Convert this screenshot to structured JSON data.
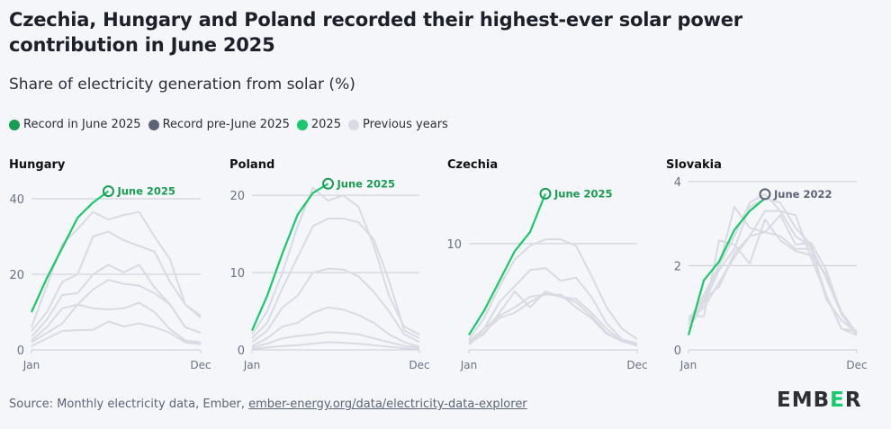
{
  "title": "Czechia, Hungary and Poland recorded their highest-ever solar power contribution in June 2025",
  "subtitle": "Share of electricity generation from solar (%)",
  "legend": [
    {
      "label": "Record in June 2025",
      "color": "#1a9d52"
    },
    {
      "label": "Record pre-June 2025",
      "color": "#5c6479"
    },
    {
      "label": "2025",
      "color": "#19c96b"
    },
    {
      "label": "Previous years",
      "color": "#d9dae3"
    }
  ],
  "source": {
    "text": "Source: Monthly electricity data, Ember, ",
    "link": "ember-energy.org/data/electricity-data-explorer"
  },
  "logo": {
    "pre": "EMB",
    "e": "E",
    "post": "R"
  },
  "colors": {
    "current": "#19c96b",
    "record_new": "#1a9d52",
    "record_old": "#5c6479",
    "previous": "#d9dae3",
    "grid": "#c9cbd6"
  },
  "chart_data": [
    {
      "type": "line",
      "title": "Hungary",
      "ylim": [
        0,
        45
      ],
      "yticks": [
        0,
        20,
        40
      ],
      "xticks": [
        "Jan",
        "Dec"
      ],
      "record": {
        "label": "June 2025",
        "kind": "new",
        "month": 6,
        "value": 42
      },
      "series_2025": [
        10,
        19,
        27,
        35,
        39,
        42
      ],
      "previous_years": [
        [
          6,
          17,
          28,
          32,
          36.5,
          34.5,
          35.7,
          36.5,
          30,
          24,
          12,
          9
        ],
        [
          5,
          10,
          18,
          20,
          30,
          31.3,
          29,
          27.5,
          26,
          18,
          12,
          8.5
        ],
        [
          3.5,
          8,
          14.5,
          15,
          20,
          22.5,
          20.5,
          22.5,
          16.5,
          12,
          6,
          4.5
        ],
        [
          2.5,
          6,
          11,
          12,
          16,
          18.5,
          17.5,
          17,
          15,
          12,
          6,
          4.5
        ],
        [
          2,
          4.5,
          7,
          12,
          11,
          10.7,
          11,
          12.5,
          10,
          5.5,
          2.5,
          2
        ],
        [
          1,
          3,
          5,
          5.2,
          5.3,
          7.5,
          6.2,
          7,
          6,
          4.5,
          2,
          1.5
        ]
      ]
    },
    {
      "type": "line",
      "title": "Poland",
      "ylim": [
        0,
        22
      ],
      "yticks": [
        0,
        10,
        20
      ],
      "xticks": [
        "Jan",
        "Dec"
      ],
      "record": {
        "label": "June 2025",
        "kind": "new",
        "month": 6,
        "value": 21.5
      },
      "series_2025": [
        2.5,
        7,
        12.5,
        17.5,
        20.3,
        21.5
      ],
      "previous_years": [
        [
          2,
          5,
          10,
          16,
          21,
          19.3,
          20,
          18.5,
          13.5,
          7,
          3,
          2
        ],
        [
          1.5,
          3.5,
          8,
          12,
          16,
          17,
          17,
          16.5,
          14.3,
          9,
          2.5,
          1.5
        ],
        [
          1,
          2.5,
          5.5,
          7,
          10,
          10.5,
          10.4,
          9.5,
          7.5,
          5,
          2,
          1
        ],
        [
          0.5,
          1.5,
          3,
          3.5,
          4.8,
          5.5,
          5.2,
          4.5,
          3.5,
          2,
          1,
          0.4
        ],
        [
          0.3,
          0.8,
          1.5,
          1.8,
          2,
          2.3,
          2.2,
          2,
          1.5,
          1,
          0.5,
          0.3
        ],
        [
          0.1,
          0.3,
          0.5,
          0.6,
          0.8,
          1,
          0.9,
          0.8,
          0.6,
          0.4,
          0.2,
          0.1
        ]
      ]
    },
    {
      "type": "line",
      "title": "Czechia",
      "ylim": [
        0,
        16
      ],
      "yticks": [
        10
      ],
      "xticks": [
        "Jan",
        "Dec"
      ],
      "record": {
        "label": "June 2025",
        "kind": "new",
        "month": 6,
        "value": 14.7
      },
      "series_2025": [
        1.4,
        3.7,
        6.5,
        9.3,
        11.1,
        14.7
      ],
      "previous_years": [
        [
          1,
          3,
          6,
          8.5,
          9.8,
          10.4,
          10.4,
          9.8,
          7,
          4,
          2,
          1
        ],
        [
          0.8,
          2,
          4.5,
          6,
          7.5,
          7.7,
          6.5,
          6.8,
          5,
          2.5,
          1,
          0.6
        ],
        [
          0.6,
          1.5,
          3.5,
          5.5,
          4,
          5.5,
          5,
          4.8,
          3.5,
          2,
          0.8,
          0.5
        ],
        [
          0.7,
          2,
          3.2,
          4,
          5,
          5.2,
          5.2,
          4,
          3,
          1.5,
          0.8,
          0.4
        ],
        [
          0.5,
          1.7,
          3,
          3.5,
          4.5,
          5.3,
          5,
          4.5,
          3.2,
          1.6,
          0.8,
          0.5
        ]
      ]
    },
    {
      "type": "line",
      "title": "Slovakia",
      "ylim": [
        0,
        4.04
      ],
      "yticks": [
        0,
        2,
        4
      ],
      "xticks": [
        "Jan",
        "Dec"
      ],
      "record": {
        "label": "June 2022",
        "kind": "old",
        "month": 6,
        "value": 3.7
      },
      "series_2025": [
        0.35,
        1.65,
        2.1,
        2.85,
        3.3,
        3.6
      ],
      "previous_years": [
        [
          0.7,
          1.3,
          2,
          3.4,
          2.9,
          2.8,
          2.7,
          2.4,
          2.4,
          1.3,
          0.5,
          0.45
        ],
        [
          0.8,
          0.8,
          2.6,
          2.5,
          2.05,
          3.1,
          2.6,
          2.35,
          2.25,
          1.8,
          0.9,
          0.4
        ],
        [
          0.6,
          1.2,
          1.5,
          2.3,
          2.7,
          3.3,
          3.3,
          2.7,
          2.45,
          1.7,
          0.85,
          0.35
        ],
        [
          0.5,
          1.1,
          1.9,
          2.4,
          3.4,
          3.6,
          3.5,
          2.9,
          2.5,
          1.2,
          0.7,
          0.4
        ],
        [
          0.7,
          1.0,
          1.6,
          2.2,
          2.7,
          2.8,
          3.2,
          2.5,
          2.55,
          1.9,
          0.85,
          0.4
        ],
        [
          0.6,
          1.2,
          2,
          2.7,
          3.5,
          3.7,
          3.3,
          3.2,
          2.2,
          1.3,
          0.5,
          0.35
        ]
      ]
    }
  ]
}
